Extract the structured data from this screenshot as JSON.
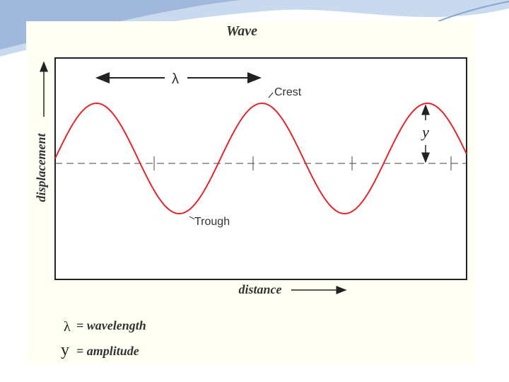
{
  "title": "Wave",
  "labels": {
    "wavelength_symbol": "λ",
    "crest": "Crest",
    "trough": "Trough",
    "amplitude_symbol": "y",
    "y_axis": "displacement",
    "x_axis": "distance"
  },
  "legend": [
    {
      "symbol": "λ",
      "text": "= wavelength"
    },
    {
      "symbol": "y",
      "text": "= amplitude"
    }
  ]
}
